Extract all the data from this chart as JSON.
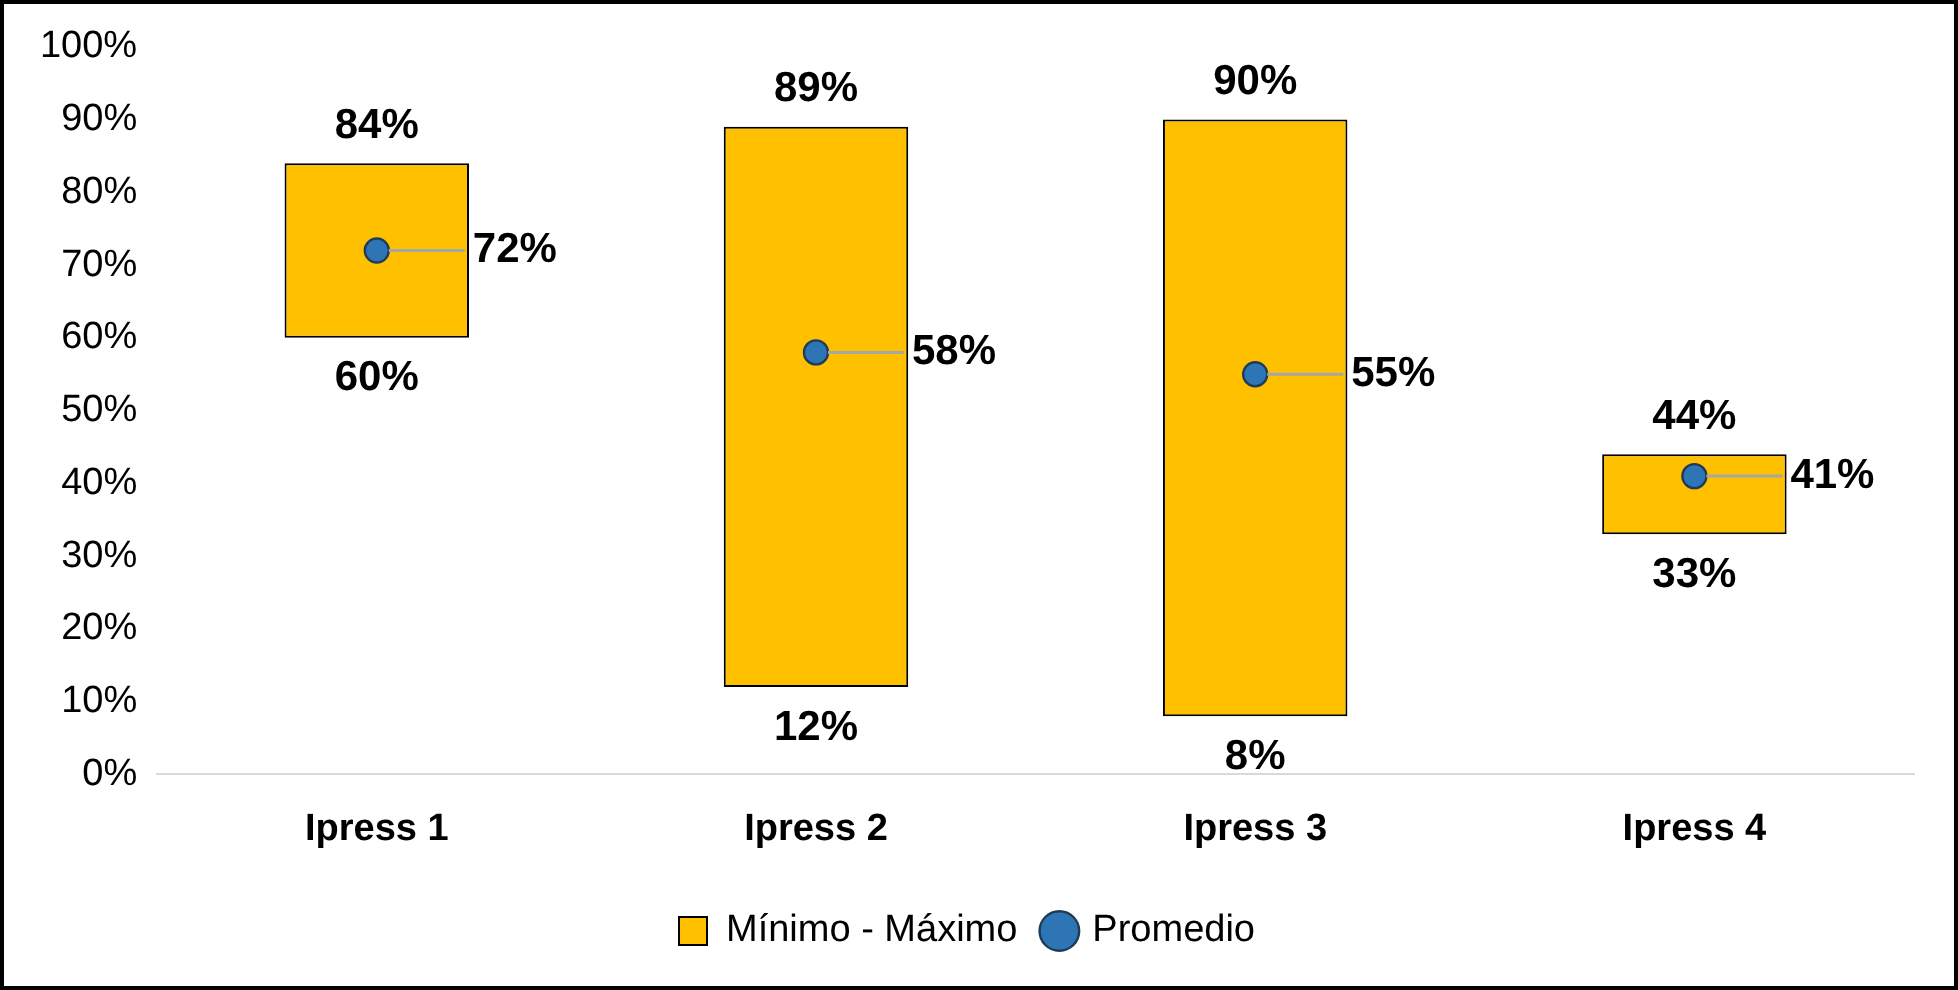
{
  "chart_data": {
    "type": "bar",
    "categories": [
      "Ipress 1",
      "Ipress 2",
      "Ipress 3",
      "Ipress 4"
    ],
    "ylim": [
      0,
      100
    ],
    "yticks": [
      {
        "value": 0,
        "label": "0%"
      },
      {
        "value": 10,
        "label": "10%"
      },
      {
        "value": 20,
        "label": "20%"
      },
      {
        "value": 30,
        "label": "30%"
      },
      {
        "value": 40,
        "label": "40%"
      },
      {
        "value": 50,
        "label": "50%"
      },
      {
        "value": 60,
        "label": "60%"
      },
      {
        "value": 70,
        "label": "70%"
      },
      {
        "value": 80,
        "label": "80%"
      },
      {
        "value": 90,
        "label": "90%"
      },
      {
        "value": 100,
        "label": "100%"
      }
    ],
    "grid": false,
    "legend": "bottom",
    "marker": "circle",
    "series": [
      {
        "name": "Mínimo - Máximo",
        "color": "#ffc000",
        "base": [
          60,
          12,
          8,
          33
        ],
        "values": [
          24,
          77,
          82,
          11
        ]
      },
      {
        "name": "Promedio",
        "type": "scatter",
        "color": "#2e75b6",
        "x": [
          "Ipress 1",
          "Ipress 2",
          "Ipress 3",
          "Ipress 4"
        ],
        "values": [
          72,
          58,
          55,
          41
        ],
        "value_labels": [
          "72%",
          "58%",
          "55%",
          "41%"
        ]
      }
    ],
    "annotations": [
      {
        "text": "84%",
        "x": "Ipress 1",
        "y": 84
      },
      {
        "text": "60%",
        "x": "Ipress 1",
        "y": 60
      },
      {
        "text": "89%",
        "x": "Ipress 2",
        "y": 89
      },
      {
        "text": "12%",
        "x": "Ipress 2",
        "y": 12
      },
      {
        "text": "90%",
        "x": "Ipress 3",
        "y": 90
      },
      {
        "text": "8%",
        "x": "Ipress 3",
        "y": 8
      },
      {
        "text": "44%",
        "x": "Ipress 4",
        "y": 44
      },
      {
        "text": "33%",
        "x": "Ipress 4",
        "y": 33
      }
    ]
  }
}
